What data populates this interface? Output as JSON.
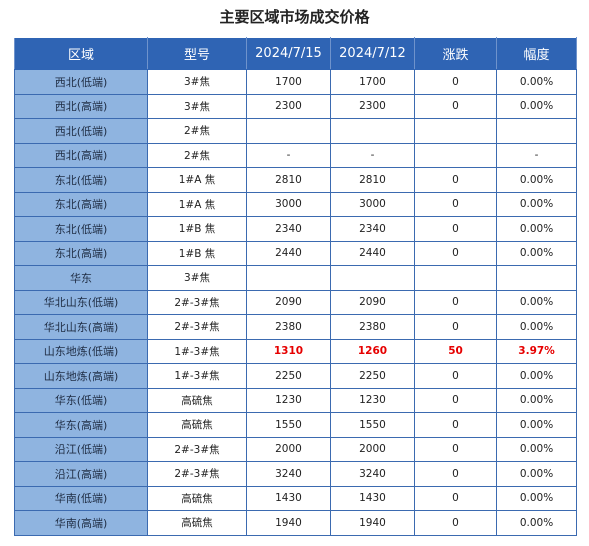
{
  "title": "主要区域市场成交价格",
  "accent_colors": {
    "header_bg": "#2f64b4",
    "region_bg": "#8fb4e0",
    "border": "#3b6ab0",
    "up": "#e60000"
  },
  "table": {
    "headers": {
      "region": "区域",
      "type": "型号",
      "date1": "2024/7/15",
      "date2": "2024/7/12",
      "change": "涨跌",
      "pct": "幅度"
    },
    "rows": [
      {
        "region": "西北(低端)",
        "type": "3#焦",
        "p1": "1700",
        "p2": "1700",
        "change": "0",
        "pct": "0.00%",
        "up": false
      },
      {
        "region": "西北(高端)",
        "type": "3#焦",
        "p1": "2300",
        "p2": "2300",
        "change": "0",
        "pct": "0.00%",
        "up": false
      },
      {
        "region": "西北(低端)",
        "type": "2#焦",
        "p1": "",
        "p2": "",
        "change": "",
        "pct": "",
        "up": false
      },
      {
        "region": "西北(高端)",
        "type": "2#焦",
        "p1": "-",
        "p2": "-",
        "change": "",
        "pct": "-",
        "up": false
      },
      {
        "region": "东北(低端)",
        "type": "1#A 焦",
        "p1": "2810",
        "p2": "2810",
        "change": "0",
        "pct": "0.00%",
        "up": false
      },
      {
        "region": "东北(高端)",
        "type": "1#A 焦",
        "p1": "3000",
        "p2": "3000",
        "change": "0",
        "pct": "0.00%",
        "up": false
      },
      {
        "region": "东北(低端)",
        "type": "1#B 焦",
        "p1": "2340",
        "p2": "2340",
        "change": "0",
        "pct": "0.00%",
        "up": false
      },
      {
        "region": "东北(高端)",
        "type": "1#B 焦",
        "p1": "2440",
        "p2": "2440",
        "change": "0",
        "pct": "0.00%",
        "up": false
      },
      {
        "region": "华东",
        "type": "3#焦",
        "p1": "",
        "p2": "",
        "change": "",
        "pct": "",
        "up": false
      },
      {
        "region": "华北山东(低端)",
        "type": "2#-3#焦",
        "p1": "2090",
        "p2": "2090",
        "change": "0",
        "pct": "0.00%",
        "up": false
      },
      {
        "region": "华北山东(高端)",
        "type": "2#-3#焦",
        "p1": "2380",
        "p2": "2380",
        "change": "0",
        "pct": "0.00%",
        "up": false
      },
      {
        "region": "山东地炼(低端)",
        "type": "1#-3#焦",
        "p1": "1310",
        "p2": "1260",
        "change": "50",
        "pct": "3.97%",
        "up": true
      },
      {
        "region": "山东地炼(高端)",
        "type": "1#-3#焦",
        "p1": "2250",
        "p2": "2250",
        "change": "0",
        "pct": "0.00%",
        "up": false
      },
      {
        "region": "华东(低端)",
        "type": "高硫焦",
        "p1": "1230",
        "p2": "1230",
        "change": "0",
        "pct": "0.00%",
        "up": false
      },
      {
        "region": "华东(高端)",
        "type": "高硫焦",
        "p1": "1550",
        "p2": "1550",
        "change": "0",
        "pct": "0.00%",
        "up": false
      },
      {
        "region": "沿江(低端)",
        "type": "2#-3#焦",
        "p1": "2000",
        "p2": "2000",
        "change": "0",
        "pct": "0.00%",
        "up": false
      },
      {
        "region": "沿江(高端)",
        "type": "2#-3#焦",
        "p1": "3240",
        "p2": "3240",
        "change": "0",
        "pct": "0.00%",
        "up": false
      },
      {
        "region": "华南(低端)",
        "type": "高硫焦",
        "p1": "1430",
        "p2": "1430",
        "change": "0",
        "pct": "0.00%",
        "up": false
      },
      {
        "region": "华南(高端)",
        "type": "高硫焦",
        "p1": "1940",
        "p2": "1940",
        "change": "0",
        "pct": "0.00%",
        "up": false
      }
    ]
  }
}
